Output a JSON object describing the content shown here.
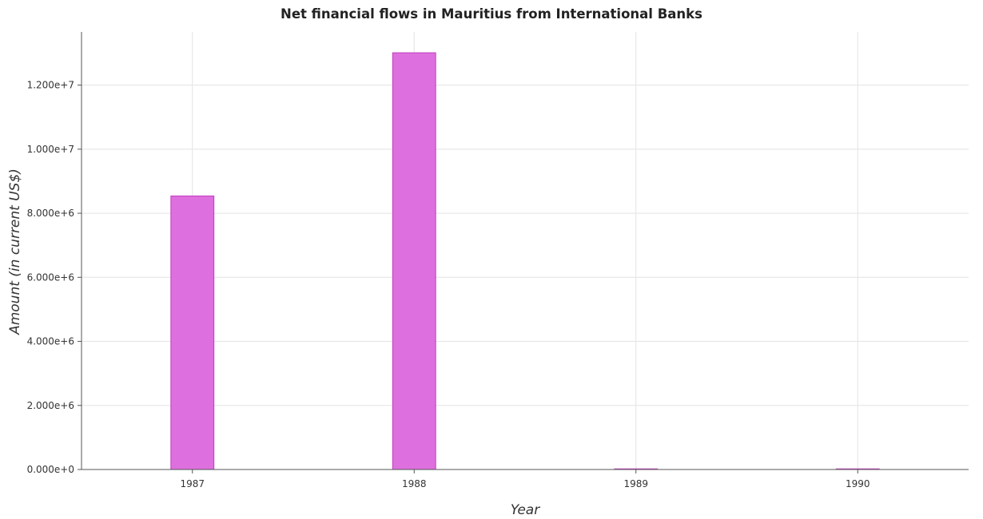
{
  "chart_data": {
    "type": "bar",
    "title": "Net financial flows in Mauritius from International Banks",
    "xlabel": "Year",
    "ylabel": "Amount (in current US$)",
    "categories": [
      "1987",
      "1988",
      "1989",
      "1990"
    ],
    "values": [
      8540000,
      13010000,
      0,
      0
    ],
    "ylim": [
      0,
      13660000
    ],
    "yticks": [
      0,
      2000000,
      4000000,
      6000000,
      8000000,
      10000000,
      12000000
    ],
    "ytick_labels": [
      "0.000e+0",
      "2.000e+6",
      "4.000e+6",
      "6.000e+6",
      "8.000e+6",
      "1.000e+7",
      "1.200e+7"
    ],
    "grid": true,
    "bar_color": "#de6fde",
    "bar_edge_color": "#c03cc0"
  }
}
